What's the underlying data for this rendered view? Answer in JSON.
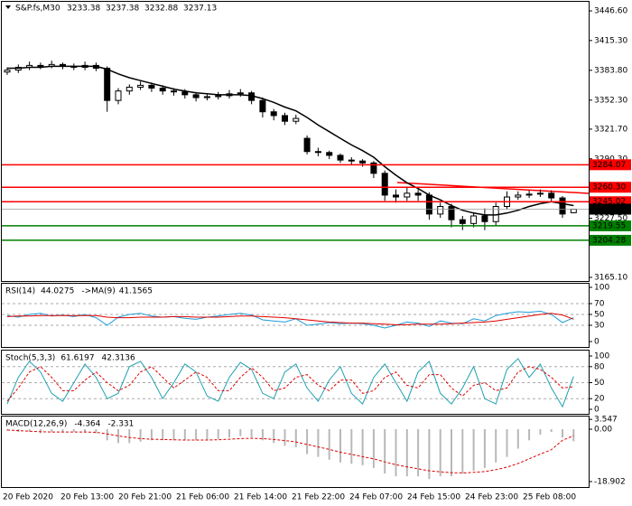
{
  "chart_data": [
    {
      "type": "candlestick",
      "title": "S&P.fs,M30",
      "open": [
        3382,
        3384,
        3387,
        3389,
        3388,
        3390,
        3388,
        3387,
        3389,
        3386,
        3352,
        3362,
        3366,
        3368,
        3365,
        3362,
        3361,
        3358,
        3355,
        3356,
        3357,
        3359,
        3360,
        3352,
        3340,
        3336,
        3330,
        3312,
        3298,
        3297,
        3294,
        3289,
        3288,
        3286,
        3275,
        3252,
        3250,
        3254,
        3252,
        3232,
        3240,
        3226,
        3222,
        3230,
        3224,
        3240,
        3250,
        3252,
        3253,
        3254,
        3249,
        3233.38
      ],
      "high": [
        3387,
        3390,
        3393,
        3392,
        3394,
        3392,
        3391,
        3393,
        3392,
        3388,
        3365,
        3369,
        3372,
        3371,
        3368,
        3365,
        3364,
        3361,
        3359,
        3361,
        3363,
        3364,
        3362,
        3355,
        3343,
        3339,
        3337,
        3315,
        3302,
        3299,
        3296,
        3292,
        3290,
        3288,
        3278,
        3258,
        3260,
        3258,
        3255,
        3244,
        3243,
        3230,
        3234,
        3238,
        3244,
        3256,
        3256,
        3257,
        3258,
        3257,
        3251,
        3237.38
      ],
      "low": [
        3379,
        3381,
        3384,
        3385,
        3386,
        3385,
        3384,
        3384,
        3383,
        3340,
        3348,
        3358,
        3363,
        3361,
        3358,
        3357,
        3354,
        3351,
        3352,
        3353,
        3354,
        3356,
        3348,
        3334,
        3331,
        3326,
        3327,
        3295,
        3293,
        3290,
        3286,
        3284,
        3282,
        3270,
        3246,
        3244,
        3246,
        3246,
        3226,
        3228,
        3218,
        3215,
        3218,
        3215,
        3220,
        3237,
        3247,
        3249,
        3250,
        3245,
        3228,
        3232.88
      ],
      "close": [
        3384,
        3387,
        3389,
        3388,
        3390,
        3388,
        3387,
        3389,
        3386,
        3352,
        3362,
        3366,
        3368,
        3365,
        3362,
        3361,
        3358,
        3355,
        3356,
        3357,
        3359,
        3360,
        3352,
        3340,
        3336,
        3330,
        3333,
        3298,
        3297,
        3294,
        3289,
        3288,
        3286,
        3275,
        3252,
        3250,
        3254,
        3252,
        3232,
        3240,
        3226,
        3222,
        3230,
        3224,
        3240,
        3250,
        3252,
        3253,
        3254,
        3249,
        3232,
        3237.13
      ],
      "ma_values": [
        3386,
        3386,
        3387,
        3387,
        3388,
        3388,
        3388,
        3388,
        3388,
        3385,
        3380,
        3376,
        3373,
        3370,
        3367,
        3364,
        3362,
        3360,
        3359,
        3358,
        3358,
        3358,
        3357,
        3354,
        3350,
        3345,
        3341,
        3334,
        3326,
        3319,
        3312,
        3305,
        3299,
        3292,
        3282,
        3273,
        3265,
        3259,
        3252,
        3247,
        3241,
        3236,
        3233,
        3231,
        3231,
        3233,
        3236,
        3240,
        3243,
        3245,
        3243,
        3241
      ],
      "ma_color": "#000000",
      "levels": [
        {
          "value": 3284.07,
          "color": "#ff0000"
        },
        {
          "value": 3260.3,
          "label": "3260.30",
          "color": "#ff0000"
        },
        {
          "value": 3245.02,
          "color": "#ff0000"
        },
        {
          "value": 3219.55,
          "color": "#008000"
        },
        {
          "value": 3204.28,
          "color": "#008000"
        }
      ],
      "ylim": [
        3160.3,
        3458.1
      ],
      "yticks": [
        {
          "value": 3446.6,
          "label": "3446.60"
        },
        {
          "value": 3415.3,
          "label": "3415.30"
        },
        {
          "value": 3383.8,
          "label": "3383.80"
        },
        {
          "value": 3352.3,
          "label": "3352.30"
        },
        {
          "value": 3321.7,
          "label": "3321.70"
        },
        {
          "value": 3290.3,
          "label": "3290.30"
        },
        {
          "value": 3227.5,
          "label": "3227.50"
        },
        {
          "value": 3165.1,
          "label": "3165.10"
        }
      ],
      "time_labels": [
        "20 Feb 2020",
        "20 Feb 13:00",
        "20 Feb 21:00",
        "21 Feb 06:00",
        "21 Feb 14:00",
        "21 Feb 22:00",
        "24 Feb 07:00",
        "24 Feb 15:00",
        "24 Feb 23:00",
        "25 Feb 08:00"
      ]
    },
    {
      "type": "line",
      "title": "RSI(14)",
      "ma_label": "->MA(9)",
      "ylim": [
        0,
        100
      ],
      "yticks": [
        100,
        70,
        50,
        30,
        0
      ],
      "grid": true,
      "series": [
        {
          "color": "#1e9bd7",
          "dashed": false,
          "values": [
            48,
            45,
            50,
            52,
            47,
            49,
            46,
            50,
            44,
            30,
            45,
            50,
            52,
            47,
            45,
            46,
            43,
            41,
            45,
            47,
            50,
            52,
            49,
            40,
            38,
            36,
            42,
            30,
            32,
            35,
            33,
            34,
            33,
            30,
            25,
            30,
            36,
            34,
            28,
            38,
            34,
            33,
            42,
            38,
            48,
            52,
            55,
            54,
            56,
            50,
            35,
            44.0275
          ]
        },
        {
          "color": "#e00000",
          "dashed": false,
          "values": [
            46,
            47,
            47,
            48,
            48,
            48,
            48,
            48,
            48,
            45,
            44,
            44,
            45,
            45,
            45,
            46,
            46,
            45,
            45,
            45,
            46,
            47,
            47,
            46,
            45,
            44,
            42,
            40,
            38,
            36,
            35,
            34,
            34,
            33,
            32,
            31,
            31,
            32,
            32,
            32,
            33,
            34,
            35,
            36,
            38,
            41,
            44,
            47,
            50,
            52,
            49,
            41.1565
          ]
        }
      ]
    },
    {
      "type": "line",
      "title": "Stoch(5,3,3)",
      "ylim": [
        0,
        100
      ],
      "yticks": [
        100,
        80,
        50,
        20,
        0
      ],
      "grid": true,
      "series": [
        {
          "color": "#20a0b0",
          "dashed": false,
          "values": [
            10,
            60,
            90,
            70,
            30,
            15,
            50,
            85,
            60,
            20,
            30,
            80,
            90,
            60,
            20,
            50,
            85,
            70,
            25,
            15,
            60,
            88,
            75,
            30,
            20,
            70,
            85,
            40,
            15,
            55,
            80,
            30,
            10,
            60,
            85,
            50,
            15,
            70,
            90,
            30,
            10,
            40,
            80,
            20,
            10,
            75,
            95,
            60,
            85,
            40,
            5,
            61.6197
          ]
        },
        {
          "color": "#e00000",
          "dashed": true,
          "values": [
            15,
            40,
            70,
            80,
            60,
            35,
            35,
            55,
            70,
            50,
            35,
            45,
            70,
            80,
            60,
            40,
            55,
            70,
            60,
            35,
            35,
            60,
            78,
            60,
            35,
            40,
            60,
            65,
            45,
            35,
            55,
            55,
            30,
            35,
            60,
            70,
            45,
            40,
            65,
            65,
            40,
            25,
            45,
            50,
            35,
            40,
            70,
            80,
            75,
            60,
            40,
            42.3136
          ]
        }
      ]
    },
    {
      "type": "bar",
      "title": "MACD(12,26,9)",
      "ylim": [
        -21.2,
        4.9
      ],
      "yticks": [
        3.547,
        {
          "value": 0,
          "label": "0.00"
        },
        -18.902
      ],
      "grid": false,
      "series": [
        {
          "kind": "bar",
          "color": "#b8b8b8",
          "values": [
            -0.5,
            -1,
            -1,
            -1.5,
            -1,
            -1,
            -1,
            -1,
            -1.5,
            -4,
            -5,
            -5,
            -4.5,
            -4,
            -4,
            -4,
            -4,
            -4,
            -4,
            -3.5,
            -3,
            -2.5,
            -3,
            -4,
            -5,
            -6,
            -6.5,
            -9,
            -10,
            -11,
            -12,
            -12.5,
            -13,
            -14,
            -16,
            -17,
            -17,
            -17,
            -18,
            -17,
            -17,
            -16,
            -15,
            -14,
            -12,
            -10,
            -7,
            -4,
            -2,
            -1,
            -3,
            -4.364
          ]
        },
        {
          "kind": "line",
          "color": "#e00000",
          "values": [
            -0.3,
            -0.5,
            -0.7,
            -0.9,
            -1,
            -1,
            -1,
            -1,
            -1.1,
            -1.7,
            -2.4,
            -3,
            -3.4,
            -3.6,
            -3.7,
            -3.8,
            -3.9,
            -3.9,
            -3.9,
            -3.8,
            -3.6,
            -3.4,
            -3.3,
            -3.4,
            -3.7,
            -4.1,
            -4.6,
            -5.5,
            -6.4,
            -7.3,
            -8.3,
            -9.1,
            -9.9,
            -10.7,
            -11.8,
            -12.8,
            -13.6,
            -14.3,
            -15,
            -15.4,
            -15.7,
            -15.8,
            -15.6,
            -15.3,
            -14.6,
            -13.7,
            -12.4,
            -10.7,
            -9,
            -7.4,
            -4,
            -2.331
          ]
        }
      ]
    }
  ]
}
